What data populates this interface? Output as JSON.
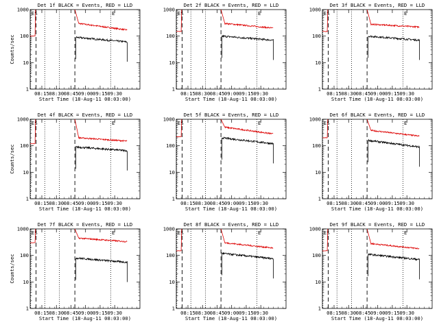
{
  "colors": {
    "events": "#000000",
    "lld": "#dd0000",
    "axes": "#000000",
    "background": "#ffffff"
  },
  "chart_data": [
    {
      "type": "line",
      "title": "Det 1f BLACK = Events, RED = LLD",
      "xlabel": "Start Time (18-Aug-11 08:03:00)",
      "ylabel": "Counts/sec",
      "yscale": "log",
      "ylim": [
        1,
        1000
      ],
      "xticks": [
        "08:15",
        "08:30",
        "08:45",
        "09:00",
        "09:15",
        "09:30"
      ],
      "yticks": [
        "1",
        "10",
        "100",
        "1000"
      ],
      "flags": [
        "E",
        "S",
        "E"
      ],
      "series": [
        {
          "name": "Events",
          "x_minutes": [
            47,
            70,
            100
          ],
          "values": [
            90,
            70,
            60
          ]
        },
        {
          "name": "LLD",
          "x_minutes": [
            1,
            10,
            47,
            70,
            100
          ],
          "values": [
            100,
            1000,
            300,
            220,
            170
          ]
        }
      ]
    },
    {
      "type": "line",
      "title": "Det 2f BLACK = Events, RED = LLD",
      "xlabel": "Start Time (18-Aug-11 08:03:00)",
      "ylabel": "",
      "yscale": "log",
      "ylim": [
        1,
        1000
      ],
      "xticks": [
        "08:15",
        "08:30",
        "08:45",
        "09:00",
        "09:15",
        "09:30"
      ],
      "yticks": [
        "1",
        "10",
        "100",
        "1000"
      ],
      "flags": [
        "E",
        "S",
        "E"
      ],
      "series": [
        {
          "name": "Events",
          "x_minutes": [
            47,
            70,
            100
          ],
          "values": [
            100,
            80,
            70
          ]
        },
        {
          "name": "LLD",
          "x_minutes": [
            1,
            10,
            47,
            70,
            100
          ],
          "values": [
            150,
            1000,
            300,
            240,
            200
          ]
        }
      ]
    },
    {
      "type": "line",
      "title": "Det 3f BLACK = Events, RED = LLD",
      "xlabel": "Start Time (18-Aug-11 08:03:00)",
      "ylabel": "",
      "yscale": "log",
      "ylim": [
        1,
        1000
      ],
      "xticks": [
        "08:15",
        "08:30",
        "08:45",
        "09:00",
        "09:15",
        "09:30"
      ],
      "yticks": [
        "1",
        "10",
        "100",
        "1000"
      ],
      "flags": [
        "E",
        "S",
        "E"
      ],
      "series": [
        {
          "name": "Events",
          "x_minutes": [
            47,
            70,
            100
          ],
          "values": [
            100,
            80,
            70
          ]
        },
        {
          "name": "LLD",
          "x_minutes": [
            1,
            10,
            47,
            70,
            100
          ],
          "values": [
            150,
            1000,
            280,
            240,
            220
          ]
        }
      ]
    },
    {
      "type": "line",
      "title": "Det 4f BLACK = Events, RED = LLD",
      "xlabel": "Start Time (18-Aug-11 08:03:00)",
      "ylabel": "Counts/sec",
      "yscale": "log",
      "ylim": [
        1,
        1000
      ],
      "xticks": [
        "08:15",
        "08:30",
        "08:45",
        "09:00",
        "09:15",
        "09:30"
      ],
      "yticks": [
        "1",
        "10",
        "100",
        "1000"
      ],
      "flags": [
        "E",
        "S",
        "E"
      ],
      "series": [
        {
          "name": "Events",
          "x_minutes": [
            47,
            70,
            100
          ],
          "values": [
            90,
            75,
            65
          ]
        },
        {
          "name": "LLD",
          "x_minutes": [
            1,
            10,
            47,
            70,
            100
          ],
          "values": [
            120,
            1000,
            200,
            170,
            150
          ]
        }
      ]
    },
    {
      "type": "line",
      "title": "Det 5f BLACK = Events, RED = LLD",
      "xlabel": "Start Time (18-Aug-11 08:03:00)",
      "ylabel": "",
      "yscale": "log",
      "ylim": [
        1,
        1000
      ],
      "xticks": [
        "08:15",
        "08:30",
        "08:45",
        "09:00",
        "09:15",
        "09:30"
      ],
      "yticks": [
        "1",
        "10",
        "100",
        "1000"
      ],
      "flags": [
        "E",
        "S",
        "E"
      ],
      "series": [
        {
          "name": "Events",
          "x_minutes": [
            47,
            70,
            100
          ],
          "values": [
            200,
            130,
            120
          ]
        },
        {
          "name": "LLD",
          "x_minutes": [
            1,
            10,
            47,
            70,
            100
          ],
          "values": [
            220,
            1000,
            500,
            320,
            280
          ]
        }
      ]
    },
    {
      "type": "line",
      "title": "Det 6f BLACK = Events, RED = LLD",
      "xlabel": "Start Time (18-Aug-11 08:03:00)",
      "ylabel": "",
      "yscale": "log",
      "ylim": [
        1,
        1000
      ],
      "xticks": [
        "08:15",
        "08:30",
        "08:45",
        "09:00",
        "09:15",
        "09:30"
      ],
      "yticks": [
        "1",
        "10",
        "100",
        "1000"
      ],
      "flags": [
        "E",
        "S",
        "E"
      ],
      "series": [
        {
          "name": "Events",
          "x_minutes": [
            47,
            70,
            100
          ],
          "values": [
            160,
            110,
            90
          ]
        },
        {
          "name": "LLD",
          "x_minutes": [
            1,
            10,
            47,
            70,
            100
          ],
          "values": [
            200,
            1000,
            380,
            280,
            230
          ]
        }
      ]
    },
    {
      "type": "line",
      "title": "Det 7f BLACK = Events, RED = LLD",
      "xlabel": "Start Time (18-Aug-11 08:03:00)",
      "ylabel": "Counts/sec",
      "yscale": "log",
      "ylim": [
        1,
        1000
      ],
      "xticks": [
        "08:15",
        "08:30",
        "08:45",
        "09:00",
        "09:15",
        "09:30"
      ],
      "yticks": [
        "1",
        "10",
        "100",
        "1000"
      ],
      "flags": [
        "E",
        "S",
        "E"
      ],
      "series": [
        {
          "name": "Events",
          "x_minutes": [
            47,
            70,
            100
          ],
          "values": [
            80,
            60,
            55
          ]
        },
        {
          "name": "LLD",
          "x_minutes": [
            1,
            10,
            47,
            70,
            100
          ],
          "values": [
            300,
            1000,
            450,
            380,
            330
          ]
        }
      ]
    },
    {
      "type": "line",
      "title": "Det 8f BLACK = Events, RED = LLD",
      "xlabel": "Start Time (18-Aug-11 08:03:00)",
      "ylabel": "",
      "yscale": "log",
      "ylim": [
        1,
        1000
      ],
      "xticks": [
        "08:15",
        "08:30",
        "08:45",
        "09:00",
        "09:15",
        "09:30"
      ],
      "yticks": [
        "1",
        "10",
        "100",
        "1000"
      ],
      "flags": [
        "E",
        "S",
        "E"
      ],
      "series": [
        {
          "name": "Events",
          "x_minutes": [
            47,
            70,
            100
          ],
          "values": [
            120,
            85,
            75
          ]
        },
        {
          "name": "LLD",
          "x_minutes": [
            1,
            10,
            47,
            70,
            100
          ],
          "values": [
            150,
            1000,
            300,
            230,
            190
          ]
        }
      ]
    },
    {
      "type": "line",
      "title": "Det 9f BLACK = Events, RED = LLD",
      "xlabel": "Start Time (18-Aug-11 08:03:00)",
      "ylabel": "",
      "yscale": "log",
      "ylim": [
        1,
        1000
      ],
      "xticks": [
        "08:15",
        "08:30",
        "08:45",
        "09:00",
        "09:15",
        "09:30"
      ],
      "yticks": [
        "1",
        "10",
        "100",
        "1000"
      ],
      "flags": [
        "E",
        "S",
        "E"
      ],
      "series": [
        {
          "name": "Events",
          "x_minutes": [
            47,
            70,
            100
          ],
          "values": [
            110,
            80,
            70
          ]
        },
        {
          "name": "LLD",
          "x_minutes": [
            1,
            10,
            47,
            70,
            100
          ],
          "values": [
            150,
            1000,
            280,
            220,
            180
          ]
        }
      ]
    }
  ]
}
